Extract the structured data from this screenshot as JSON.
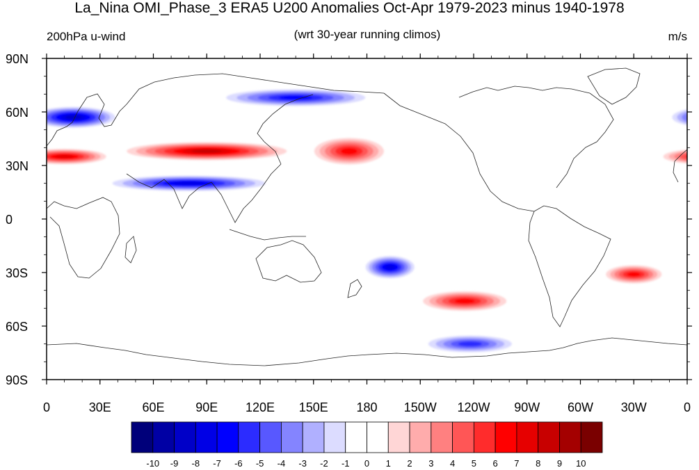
{
  "title": "La_Nina OMI_Phase_3 ERA5 U200 Anomalies Oct-Apr 1979-2023 minus 1940-1978",
  "left_subtitle": "200hPa u-wind",
  "center_subtitle": "(wrt 30-year running climos)",
  "right_subtitle": "m/s",
  "map": {
    "projection": "cylindrical equidistant",
    "center_longitude": 180,
    "field": "U200 anomaly",
    "lat_ticks": [
      "90N",
      "60N",
      "30N",
      "0",
      "30S",
      "60S",
      "90S"
    ],
    "lon_ticks": [
      "0",
      "30E",
      "60E",
      "90E",
      "120E",
      "150E",
      "180",
      "150W",
      "120W",
      "90W",
      "60W",
      "30W",
      "0"
    ],
    "features": [
      {
        "name": "subtropical westerly max",
        "lon": 90,
        "lat": 38,
        "value": 8
      },
      {
        "name": "westerly max",
        "lon": 10,
        "lat": 35,
        "value": 7
      },
      {
        "name": "westerly max",
        "lon": 170,
        "lat": 38,
        "value": 6
      },
      {
        "name": "easterly max",
        "lon": 15,
        "lat": 57,
        "value": -8
      },
      {
        "name": "easterly max",
        "lon": 80,
        "lat": 20,
        "value": -7
      },
      {
        "name": "easterly max",
        "lon": 140,
        "lat": 68,
        "value": -6
      },
      {
        "name": "westerly max",
        "lon": 235,
        "lat": -46,
        "value": 6
      },
      {
        "name": "easterly max",
        "lon": 193,
        "lat": -27,
        "value": -7
      },
      {
        "name": "westerly max",
        "lon": 330,
        "lat": -31,
        "value": 6
      },
      {
        "name": "easterly max",
        "lon": 238,
        "lat": -70,
        "value": -5
      }
    ]
  },
  "colorbar": {
    "labels": [
      "-10",
      "-9",
      "-8",
      "-7",
      "-6",
      "-5",
      "-4",
      "-3",
      "-2",
      "-1",
      "0",
      "1",
      "2",
      "3",
      "4",
      "5",
      "6",
      "7",
      "8",
      "9",
      "10"
    ],
    "colors": [
      "#00007a",
      "#0000a4",
      "#0000c8",
      "#0000e6",
      "#0000ff",
      "#2c2cff",
      "#5858ff",
      "#8484ff",
      "#b0b0ff",
      "#dcdcff",
      "#ffffff",
      "#ffffff",
      "#ffd6d6",
      "#ffacac",
      "#ff8080",
      "#ff5656",
      "#ff2c2c",
      "#ff0000",
      "#e60000",
      "#c80000",
      "#a40000",
      "#7a0000"
    ]
  }
}
